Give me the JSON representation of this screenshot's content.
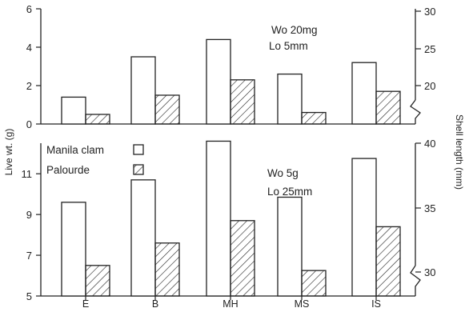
{
  "chart_data": [
    {
      "type": "bar",
      "panel": "top",
      "annotation": [
        "Wo 20mg",
        "Lo 5mm"
      ],
      "categories": [
        "E",
        "B",
        "MH",
        "MS",
        "IS"
      ],
      "series": [
        {
          "name": "Manila clam",
          "style": "open",
          "values": [
            1.4,
            3.5,
            4.4,
            2.6,
            3.2
          ]
        },
        {
          "name": "Palourde",
          "style": "hatched",
          "values": [
            0.5,
            1.5,
            2.3,
            0.6,
            1.7
          ]
        }
      ],
      "ylim": [
        0,
        6
      ],
      "yticks": [
        "0",
        "2",
        "4",
        "6"
      ],
      "y2ticks": [
        "20",
        "25",
        "30"
      ],
      "grid": false
    },
    {
      "type": "bar",
      "panel": "bottom",
      "annotation": [
        "Wo 5g",
        "Lo 25mm"
      ],
      "categories": [
        "E",
        "B",
        "MH",
        "MS",
        "IS"
      ],
      "series": [
        {
          "name": "Manila clam",
          "style": "open",
          "values": [
            9.6,
            10.7,
            12.6,
            9.85,
            11.75
          ]
        },
        {
          "name": "Palourde",
          "style": "hatched",
          "values": [
            6.5,
            7.6,
            8.7,
            6.25,
            8.4
          ]
        }
      ],
      "ylim": [
        5,
        13
      ],
      "yticks": [
        "5",
        "7",
        "9",
        "11"
      ],
      "y2ticks": [
        "30",
        "35",
        "40"
      ],
      "legend": [
        "Manila clam",
        "Palourde"
      ],
      "legend_position": "top-left",
      "grid": false
    }
  ],
  "ylabel": "Live wt. (g)",
  "y2label": "Shell length (mm)"
}
